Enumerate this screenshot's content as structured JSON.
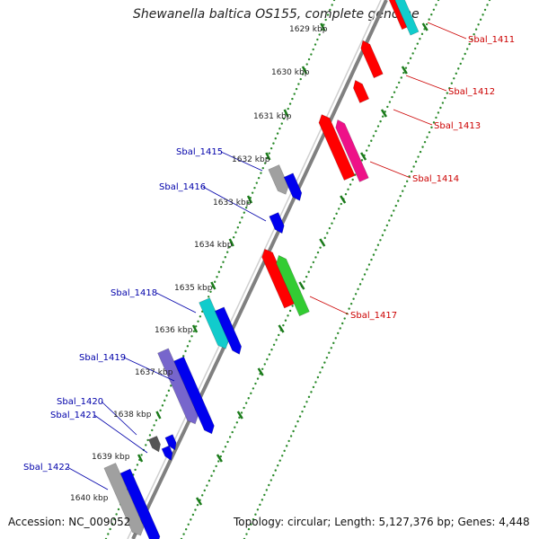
{
  "title": "Shewanella baltica OS155, complete genome",
  "accession": "Accession: NC_009052",
  "summary": "Topology: circular; Length: 5,127,376 bp; Genes: 4,448",
  "colors": {
    "backbone": "#808080",
    "tick_dots": "#2a8a2a",
    "forward_label": "#cc0000",
    "reverse_label": "#0000aa",
    "red": "#ff0000",
    "magenta": "#ee1188",
    "cyan": "#11cccc",
    "green": "#33cc33",
    "blue": "#0000ee",
    "lavender": "#7766cc",
    "gray": "#a0a0a0",
    "darkgray": "#555555"
  },
  "scale_labels": [
    "1629 kbp",
    "1630 kbp",
    "1631 kbp",
    "1632 kbp",
    "1633 kbp",
    "1634 kbp",
    "1635 kbp",
    "1636 kbp",
    "1637 kbp",
    "1638 kbp",
    "1639 kbp",
    "1640 kbp"
  ],
  "forward_labels": [
    "Sbal_1411",
    "Sbal_1412",
    "Sbal_1413",
    "Sbal_1414",
    "Sbal_1417"
  ],
  "reverse_labels": [
    "Sbal_1415",
    "Sbal_1416",
    "Sbal_1418",
    "Sbal_1419",
    "Sbal_1420",
    "Sbal_1421",
    "Sbal_1422"
  ]
}
